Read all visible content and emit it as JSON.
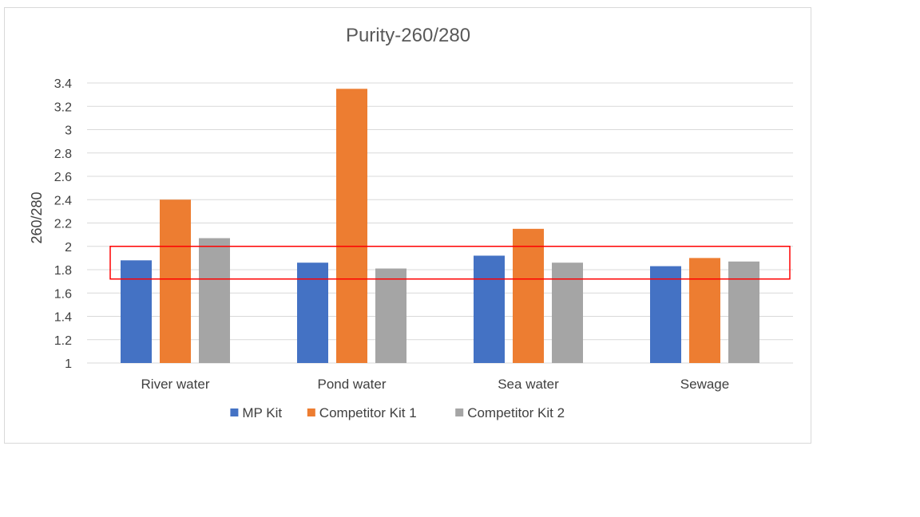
{
  "chart_data": {
    "type": "bar",
    "title": "Purity-260/280",
    "xlabel": "",
    "ylabel": "260/280",
    "ylim": [
      1,
      3.4
    ],
    "yticks": [
      "1",
      "1.2",
      "1.4",
      "1.6",
      "1.8",
      "2",
      "2.2",
      "2.4",
      "2.6",
      "2.8",
      "3",
      "3.2",
      "3.4"
    ],
    "grid": true,
    "legend_position": "bottom",
    "categories": [
      "River water",
      "Pond water",
      "Sea water",
      "Sewage"
    ],
    "series": [
      {
        "name": "MP Kit",
        "color": "#4472c4",
        "values": [
          1.88,
          1.86,
          1.92,
          1.83
        ]
      },
      {
        "name": "Competitor Kit 1",
        "color": "#ed7d31",
        "values": [
          2.4,
          3.35,
          2.15,
          1.9
        ]
      },
      {
        "name": "Competitor Kit 2",
        "color": "#a5a5a5",
        "values": [
          2.07,
          1.81,
          1.86,
          1.87
        ]
      }
    ],
    "highlight_band": {
      "range": [
        1.72,
        2.0
      ],
      "color": "#ff0000"
    }
  }
}
